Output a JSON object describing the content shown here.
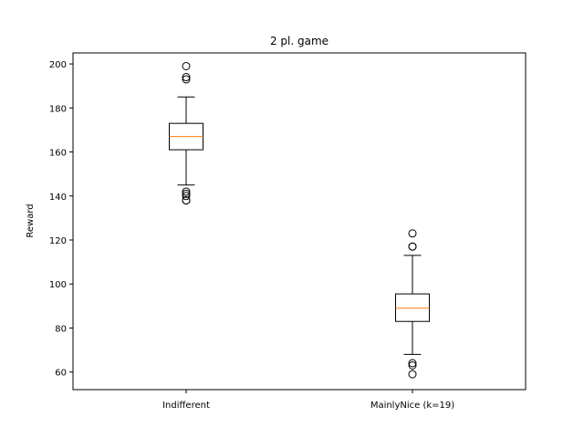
{
  "chart_data": {
    "type": "box",
    "title": "2 pl. game",
    "xlabel": "",
    "ylabel": "Reward",
    "ylim": [
      52,
      205
    ],
    "yticks": [
      60,
      80,
      100,
      120,
      140,
      160,
      180,
      200
    ],
    "grid": false,
    "categories": [
      "Indifferent",
      "MainlyNice (k=19)"
    ],
    "boxes": [
      {
        "category": "Indifferent",
        "whisker_low": 145,
        "q1": 161,
        "median": 167,
        "q3": 173,
        "whisker_high": 185,
        "outliers": [
          199,
          194,
          193,
          142,
          141,
          140,
          138,
          138
        ]
      },
      {
        "category": "MainlyNice (k=19)",
        "whisker_low": 68,
        "q1": 83,
        "median": 89,
        "q3": 95.5,
        "whisker_high": 113,
        "outliers": [
          123,
          117,
          117,
          64,
          63,
          59
        ]
      }
    ],
    "colors": {
      "box": "#000000",
      "median": "#ff7f0e",
      "outlier": "#000000"
    }
  }
}
